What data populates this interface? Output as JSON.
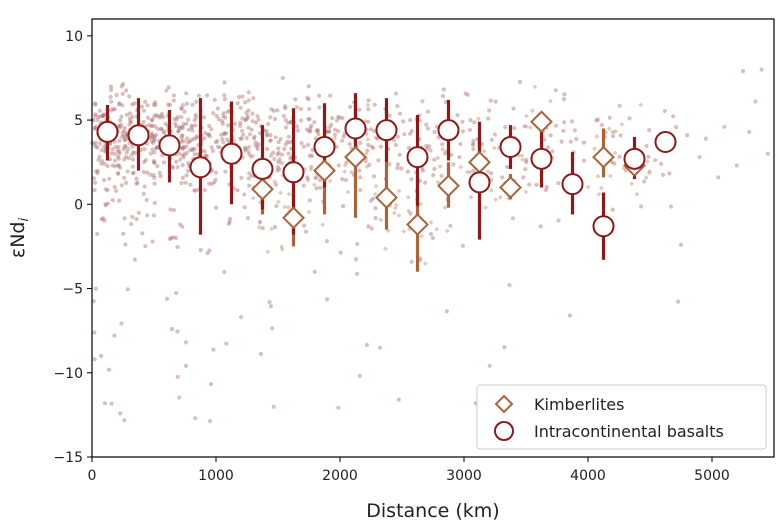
{
  "chart_data": {
    "type": "scatter",
    "xlabel": "Distance (km)",
    "ylabel_main": "εNd",
    "ylabel_sub": "i",
    "xlim": [
      0,
      5500
    ],
    "ylim": [
      -15,
      11
    ],
    "xticks": [
      0,
      1000,
      2000,
      3000,
      4000,
      5000
    ],
    "yticks": [
      -15,
      -10,
      -5,
      0,
      5,
      10
    ],
    "grid": false,
    "legend_position": "bottom-right",
    "colors": {
      "basalt": "#8b1a1a",
      "kimberlite": "#a8643c",
      "scatter_basalt": "#b07070",
      "scatter_kimberlite": "#c49a78"
    },
    "series": [
      {
        "name": "Kimberlites",
        "marker": "diamond",
        "points": [
          {
            "x": 1375,
            "y": 0.9,
            "low": -0.6,
            "high": 2.1
          },
          {
            "x": 1625,
            "y": -0.8,
            "low": -2.5,
            "high": 0.9
          },
          {
            "x": 1875,
            "y": 2.0,
            "low": -0.6,
            "high": 4.3
          },
          {
            "x": 2125,
            "y": 2.8,
            "low": -0.8,
            "high": 5.9
          },
          {
            "x": 2375,
            "y": 0.4,
            "low": -1.5,
            "high": 2.5
          },
          {
            "x": 2625,
            "y": -1.2,
            "low": -4.0,
            "high": 1.6
          },
          {
            "x": 2875,
            "y": 1.1,
            "low": -0.2,
            "high": 2.5
          },
          {
            "x": 3125,
            "y": 2.5,
            "low": 0.9,
            "high": 3.9
          },
          {
            "x": 3375,
            "y": 1.0,
            "low": 0.3,
            "high": 1.8
          },
          {
            "x": 3625,
            "y": 4.9,
            "low": 4.2,
            "high": 5.3
          },
          {
            "x": 4125,
            "y": 2.8,
            "low": 1.6,
            "high": 4.5
          },
          {
            "x": 4375,
            "y": 2.3,
            "low": 1.7,
            "high": 2.9
          }
        ]
      },
      {
        "name": "Intracontinental basalts",
        "marker": "circle",
        "points": [
          {
            "x": 125,
            "y": 4.3,
            "low": 2.6,
            "high": 5.9
          },
          {
            "x": 375,
            "y": 4.1,
            "low": 2.0,
            "high": 6.3
          },
          {
            "x": 625,
            "y": 3.5,
            "low": 1.3,
            "high": 5.6
          },
          {
            "x": 875,
            "y": 2.2,
            "low": -1.8,
            "high": 6.3
          },
          {
            "x": 1125,
            "y": 3.0,
            "low": 0.0,
            "high": 6.1
          },
          {
            "x": 1375,
            "y": 2.1,
            "low": -0.3,
            "high": 4.7
          },
          {
            "x": 1625,
            "y": 1.9,
            "low": -1.8,
            "high": 5.7
          },
          {
            "x": 1875,
            "y": 3.4,
            "low": 1.0,
            "high": 6.0
          },
          {
            "x": 2125,
            "y": 4.5,
            "low": 2.4,
            "high": 6.6
          },
          {
            "x": 2375,
            "y": 4.4,
            "low": 2.5,
            "high": 6.3
          },
          {
            "x": 2625,
            "y": 2.8,
            "low": -0.1,
            "high": 5.3
          },
          {
            "x": 2875,
            "y": 4.4,
            "low": 2.6,
            "high": 6.2
          },
          {
            "x": 3125,
            "y": 1.3,
            "low": -2.1,
            "high": 4.9
          },
          {
            "x": 3375,
            "y": 3.4,
            "low": 2.1,
            "high": 4.7
          },
          {
            "x": 3625,
            "y": 2.7,
            "low": 1.0,
            "high": 4.6
          },
          {
            "x": 3875,
            "y": 1.2,
            "low": -0.6,
            "high": 3.1
          },
          {
            "x": 4125,
            "y": -1.3,
            "low": -3.3,
            "high": 0.7
          },
          {
            "x": 4375,
            "y": 2.7,
            "low": 1.5,
            "high": 4.0
          },
          {
            "x": 4625,
            "y": 3.7,
            "low": 3.6,
            "high": 3.9
          }
        ]
      }
    ]
  }
}
